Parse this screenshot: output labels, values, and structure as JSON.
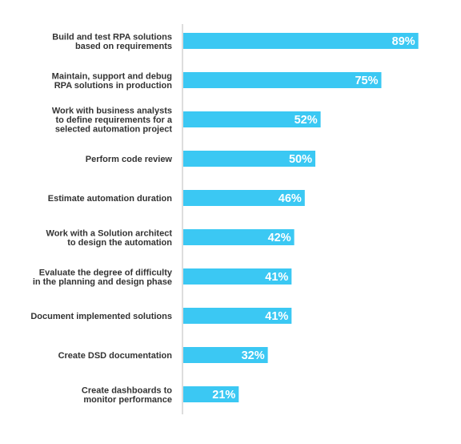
{
  "chart_data": {
    "type": "bar",
    "orientation": "horizontal",
    "title": "",
    "xlabel": "",
    "ylabel": "",
    "xlim": [
      0,
      100
    ],
    "grid": false,
    "legend": "none",
    "bar_color": "#3bc8f3",
    "value_label_color": "#ffffff",
    "category_label_color": "#333333",
    "axis_color": "#bbbbbb",
    "categories": [
      [
        "Build and test RPA solutions",
        "based on requirements"
      ],
      [
        "Maintain, support and debug",
        "RPA solutions in production"
      ],
      [
        "Work with business analysts",
        "to define requirements for a",
        "selected automation project"
      ],
      [
        "Perform code review"
      ],
      [
        "Estimate automation duration"
      ],
      [
        "Work with a Solution architect",
        "to design the automation"
      ],
      [
        "Evaluate the degree of difficulty",
        "in the planning and design phase"
      ],
      [
        "Document implemented solutions"
      ],
      [
        "Create DSD documentation"
      ],
      [
        "Create dashboards to",
        "monitor performance"
      ]
    ],
    "values": [
      89,
      75,
      52,
      50,
      46,
      42,
      41,
      41,
      32,
      21
    ],
    "value_labels": [
      "89%",
      "75%",
      "52%",
      "50%",
      "46%",
      "42%",
      "41%",
      "41%",
      "32%",
      "21%"
    ]
  }
}
